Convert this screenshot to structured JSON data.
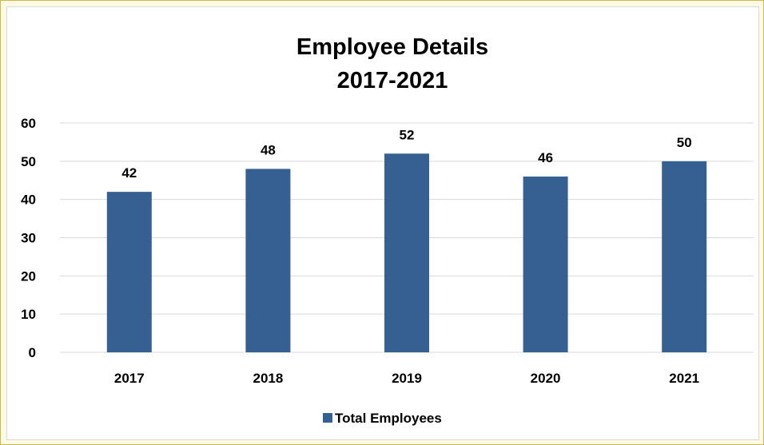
{
  "chart_data": {
    "type": "bar",
    "title": "Employee Details",
    "subtitle": "2017-2021",
    "categories": [
      "2017",
      "2018",
      "2019",
      "2020",
      "2021"
    ],
    "series": [
      {
        "name": "Total Employees",
        "values": [
          42,
          48,
          52,
          46,
          50
        ],
        "color": "#376092"
      }
    ],
    "ylim": [
      0,
      60
    ],
    "yticks": [
      0,
      10,
      20,
      30,
      40,
      50,
      60
    ],
    "grid": true,
    "legend": "bottom-center",
    "data_labels": true
  },
  "colors": {
    "frame_background": "#fffbe3",
    "frame_border": "#d8b54a",
    "gridline": "#d9d9d9",
    "bar": "#376092"
  }
}
